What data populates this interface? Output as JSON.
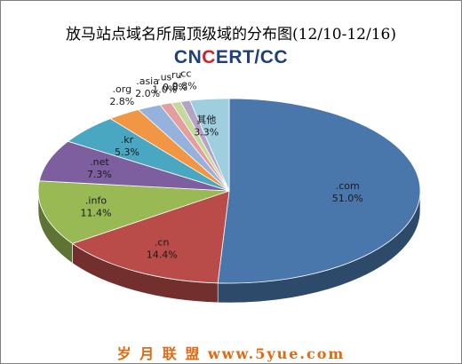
{
  "chart_data": {
    "type": "pie",
    "title": "放马站点域名所属顶级域的分布图(12/10-12/16)",
    "slices": [
      {
        "label": ".com",
        "value": 51.0,
        "value_text": "51.0%",
        "color": "#4a77ab"
      },
      {
        "label": ".cn",
        "value": 14.4,
        "value_text": "14.4%",
        "color": "#b94b48"
      },
      {
        "label": ".info",
        "value": 11.4,
        "value_text": "11.4%",
        "color": "#98b954"
      },
      {
        "label": ".net",
        "value": 7.3,
        "value_text": "7.3%",
        "color": "#7d5fa0"
      },
      {
        "label": ".kr",
        "value": 5.3,
        "value_text": "5.3%",
        "color": "#4aa7c2"
      },
      {
        "label": ".org",
        "value": 2.8,
        "value_text": "2.8%",
        "color": "#f19644"
      },
      {
        "label": ".asia",
        "value": 2.0,
        "value_text": "2.0%",
        "color": "#95b2dc"
      },
      {
        "label": ".us",
        "value": 1.0,
        "value_text": "1.0%",
        "color": "#e39e9d"
      },
      {
        "label": ".ru",
        "value": 0.8,
        "value_text": "0.8%",
        "color": "#c4d99b"
      },
      {
        "label": ".cc",
        "value": 0.8,
        "value_text": "0.8%",
        "color": "#b3a4c7"
      },
      {
        "label": "其他",
        "value": 3.3,
        "value_text": "3.3%",
        "color": "#9fcfdf"
      }
    ]
  },
  "logo": {
    "text_left": "CN",
    "text_globe": "C",
    "text_right": "ERT/CC"
  },
  "footer": {
    "watermark": "岁 月 联 盟  www.5yue.com"
  }
}
